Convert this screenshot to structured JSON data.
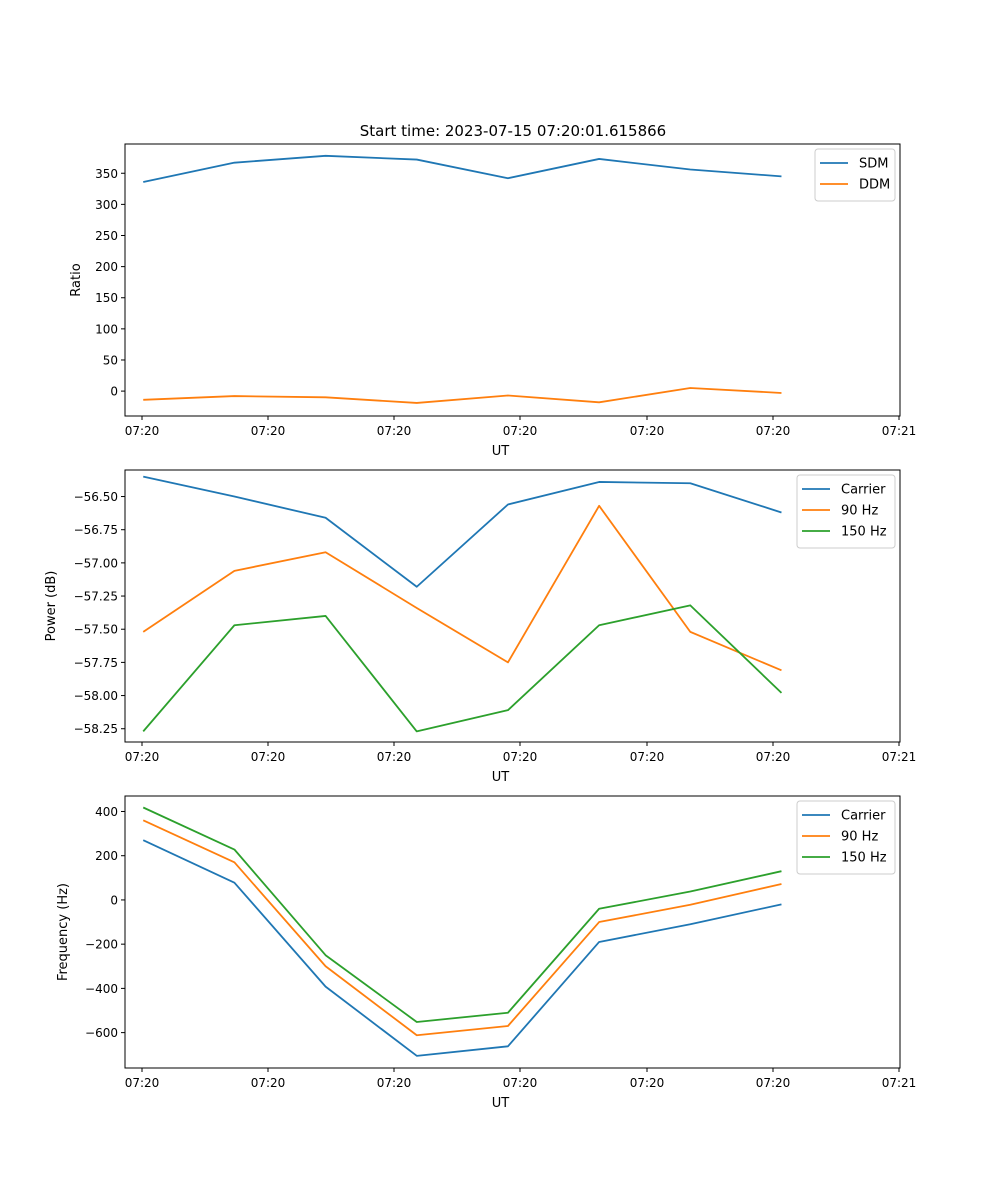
{
  "figure_title": "Start time: 2023-07-15 07:20:01.615866",
  "chart_data": [
    {
      "type": "line",
      "title": "Start time: 2023-07-15 07:20:01.615866",
      "xlabel": "UT",
      "ylabel": "Ratio",
      "x_ticks": [
        "07:20",
        "07:20",
        "07:20",
        "07:20",
        "07:20",
        "07:20",
        "07:21"
      ],
      "x": [
        1,
        2,
        3,
        4,
        5,
        6,
        7,
        8
      ],
      "xlim": [
        0.8,
        9.3
      ],
      "ylim": [
        -40,
        397
      ],
      "yticks": [
        0,
        50,
        100,
        150,
        200,
        250,
        300,
        350
      ],
      "legend": "top-right",
      "series": [
        {
          "name": "SDM",
          "color": "#1f77b4",
          "values": [
            336,
            367,
            378,
            372,
            342,
            373,
            356,
            345
          ]
        },
        {
          "name": "DDM",
          "color": "#ff7f0e",
          "values": [
            -14,
            -8,
            -10,
            -19,
            -7,
            -18,
            5,
            -3
          ]
        }
      ]
    },
    {
      "type": "line",
      "title": "",
      "xlabel": "UT",
      "ylabel": "Power (dB)",
      "x_ticks": [
        "07:20",
        "07:20",
        "07:20",
        "07:20",
        "07:20",
        "07:20",
        "07:21"
      ],
      "x": [
        1,
        2,
        3,
        4,
        5,
        6,
        7,
        8
      ],
      "xlim": [
        0.8,
        9.3
      ],
      "ylim": [
        -58.35,
        -56.3
      ],
      "yticks": [
        -58.25,
        -58.0,
        -57.75,
        -57.5,
        -57.25,
        -57.0,
        -56.75,
        -56.5
      ],
      "legend": "top-right",
      "series": [
        {
          "name": "Carrier",
          "color": "#1f77b4",
          "values": [
            -56.35,
            -56.5,
            -56.66,
            -57.18,
            -56.56,
            -56.39,
            -56.4,
            -56.62
          ]
        },
        {
          "name": "90 Hz",
          "color": "#ff7f0e",
          "values": [
            -57.52,
            -57.06,
            -56.92,
            -57.34,
            -57.75,
            -56.57,
            -57.52,
            -57.81
          ]
        },
        {
          "name": "150 Hz",
          "color": "#2ca02c",
          "values": [
            -58.27,
            -57.47,
            -57.4,
            -58.27,
            -58.11,
            -57.47,
            -57.32,
            -57.98
          ]
        }
      ]
    },
    {
      "type": "line",
      "title": "",
      "xlabel": "UT",
      "ylabel": "Frequency (Hz)",
      "x_ticks": [
        "07:20",
        "07:20",
        "07:20",
        "07:20",
        "07:20",
        "07:20",
        "07:21"
      ],
      "x": [
        1,
        2,
        3,
        4,
        5,
        6,
        7,
        8
      ],
      "xlim": [
        0.8,
        9.3
      ],
      "ylim": [
        -760,
        470
      ],
      "yticks": [
        -600,
        -400,
        -200,
        0,
        200,
        400
      ],
      "legend": "top-right",
      "series": [
        {
          "name": "Carrier",
          "color": "#1f77b4",
          "values": [
            270,
            78,
            -392,
            -705,
            -662,
            -190,
            -110,
            -20
          ]
        },
        {
          "name": "90 Hz",
          "color": "#ff7f0e",
          "values": [
            360,
            170,
            -300,
            -612,
            -570,
            -100,
            -22,
            72
          ]
        },
        {
          "name": "150 Hz",
          "color": "#2ca02c",
          "values": [
            418,
            228,
            -250,
            -552,
            -510,
            -40,
            38,
            130
          ]
        }
      ]
    }
  ]
}
